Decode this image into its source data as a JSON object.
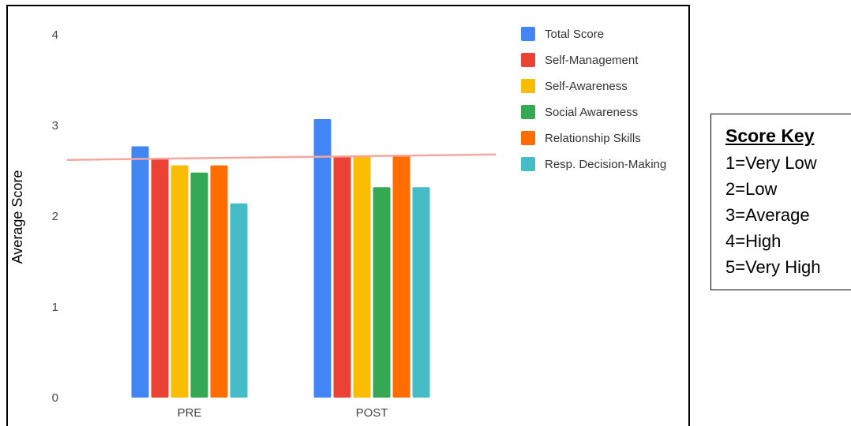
{
  "chart_data": {
    "type": "bar",
    "categories": [
      "PRE",
      "POST"
    ],
    "ylabel": "Average Score",
    "ylim": [
      0,
      4
    ],
    "yticks": [
      "0",
      "1",
      "2",
      "3",
      "4"
    ],
    "grid": false,
    "legend_position": "right",
    "series": [
      {
        "name": "Total Score",
        "color": "#4285f4",
        "values": [
          2.77,
          3.07
        ]
      },
      {
        "name": "Self-Management",
        "color": "#ea4335",
        "values": [
          2.63,
          2.66
        ]
      },
      {
        "name": "Self-Awareness",
        "color": "#fbbc04",
        "values": [
          2.56,
          2.66
        ]
      },
      {
        "name": "Social Awareness",
        "color": "#34a853",
        "values": [
          2.48,
          2.32
        ]
      },
      {
        "name": "Relationship Skills",
        "color": "#ff6d01",
        "values": [
          2.56,
          2.66
        ]
      },
      {
        "name": "Resp. Decision-Making",
        "color": "#46bdc6",
        "values": [
          2.14,
          2.32
        ]
      }
    ],
    "trendline": {
      "color": "#f4a7a0",
      "values": [
        2.62,
        2.68
      ]
    }
  },
  "score_key": {
    "title": "Score Key",
    "items": [
      "1=Very Low",
      "2=Low",
      "3=Average",
      "4=High",
      "5=Very High"
    ]
  }
}
